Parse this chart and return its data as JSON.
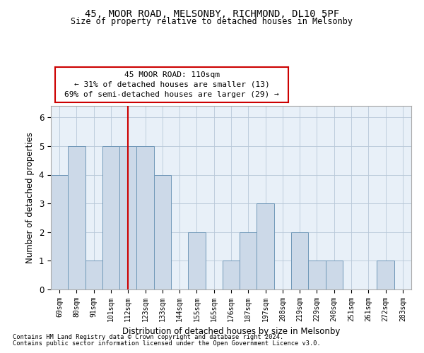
{
  "title1": "45, MOOR ROAD, MELSONBY, RICHMOND, DL10 5PF",
  "title2": "Size of property relative to detached houses in Melsonby",
  "xlabel": "Distribution of detached houses by size in Melsonby",
  "ylabel": "Number of detached properties",
  "categories": [
    "69sqm",
    "80sqm",
    "91sqm",
    "101sqm",
    "112sqm",
    "123sqm",
    "133sqm",
    "144sqm",
    "155sqm",
    "165sqm",
    "176sqm",
    "187sqm",
    "197sqm",
    "208sqm",
    "219sqm",
    "229sqm",
    "240sqm",
    "251sqm",
    "261sqm",
    "272sqm",
    "283sqm"
  ],
  "values": [
    4,
    5,
    1,
    5,
    5,
    5,
    4,
    0,
    2,
    0,
    1,
    2,
    3,
    0,
    2,
    1,
    1,
    0,
    0,
    1,
    0
  ],
  "bar_color": "#ccd9e8",
  "bar_edge_color": "#7098b8",
  "highlight_index": 4,
  "highlight_line_color": "#cc0000",
  "annotation_line1": "45 MOOR ROAD: 110sqm",
  "annotation_line2": "← 31% of detached houses are smaller (13)",
  "annotation_line3": "69% of semi-detached houses are larger (29) →",
  "annotation_box_color": "#ffffff",
  "annotation_box_edge_color": "#cc0000",
  "ylim_min": 0,
  "ylim_max": 6.4,
  "yticks": [
    0,
    1,
    2,
    3,
    4,
    5,
    6
  ],
  "footnote1": "Contains HM Land Registry data © Crown copyright and database right 2024.",
  "footnote2": "Contains public sector information licensed under the Open Government Licence v3.0.",
  "bg_color": "#ffffff",
  "plot_bg_color": "#e8f0f8",
  "grid_color": "#b8c8d8"
}
